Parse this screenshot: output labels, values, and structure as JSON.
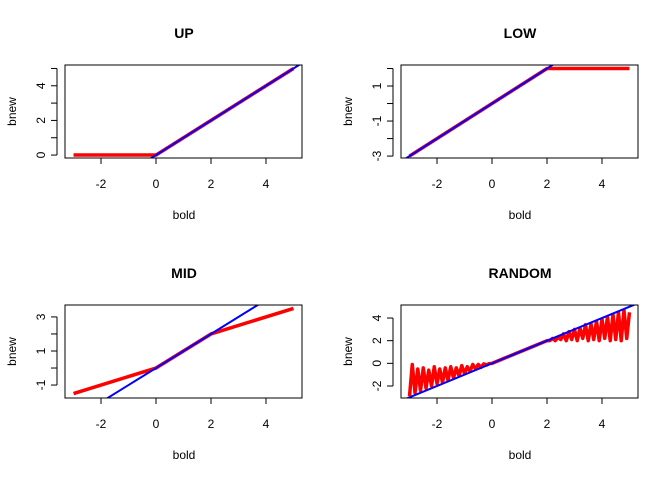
{
  "chart_data": [
    {
      "type": "line",
      "title": "UP",
      "xlabel": "bold",
      "ylabel": "bnew",
      "xlim": [
        -3.31,
        5.31
      ],
      "ylim": [
        -0.17,
        5.2
      ],
      "xticks": [
        -2,
        0,
        2,
        4
      ],
      "yticks": [
        0,
        1,
        2,
        3,
        4,
        5
      ],
      "ytick_labels": [
        "0",
        "",
        "2",
        "",
        "4",
        ""
      ],
      "series": [
        {
          "color": "#ff0000",
          "x": [
            -3,
            0,
            5
          ],
          "y": [
            0,
            0,
            5
          ]
        },
        {
          "color": "#0000ff",
          "abline": {
            "intercept": 0,
            "slope": 1
          }
        }
      ]
    },
    {
      "type": "line",
      "title": "LOW",
      "xlabel": "bold",
      "ylabel": "bnew",
      "xlim": [
        -3.31,
        5.31
      ],
      "ylim": [
        -3.11,
        2.2
      ],
      "xticks": [
        -2,
        0,
        2,
        4
      ],
      "yticks": [
        -3,
        -2,
        -1,
        0,
        1,
        2
      ],
      "ytick_labels": [
        "-3",
        "",
        "-1",
        "",
        "1",
        ""
      ],
      "series": [
        {
          "color": "#ff0000",
          "x": [
            -3,
            2,
            5
          ],
          "y": [
            -3,
            2,
            2
          ]
        },
        {
          "color": "#0000ff",
          "abline": {
            "intercept": 0,
            "slope": 1
          }
        }
      ]
    },
    {
      "type": "line",
      "title": "MID",
      "xlabel": "bold",
      "ylabel": "bnew",
      "xlim": [
        -3.31,
        5.31
      ],
      "ylim": [
        -1.76,
        3.7
      ],
      "xticks": [
        -2,
        0,
        2,
        4
      ],
      "yticks": [
        -1,
        0,
        1,
        2,
        3
      ],
      "ytick_labels": [
        "-1",
        "",
        "1",
        "",
        "3"
      ],
      "series": [
        {
          "color": "#ff0000",
          "x": [
            -3,
            0,
            2,
            5
          ],
          "y": [
            -1.5,
            0,
            2,
            3.5
          ]
        },
        {
          "color": "#0000ff",
          "abline": {
            "intercept": 0,
            "slope": 1
          }
        }
      ]
    },
    {
      "type": "line",
      "title": "RANDOM",
      "xlabel": "bold",
      "ylabel": "bnew",
      "xlim": [
        -3.31,
        5.31
      ],
      "ylim": [
        -3.06,
        5.15
      ],
      "xticks": [
        -2,
        0,
        2,
        4
      ],
      "yticks": [
        -2,
        0,
        2,
        4
      ],
      "ytick_labels": [
        "-2",
        "0",
        "2",
        "4"
      ],
      "series": [
        {
          "color": "#ff0000",
          "x": [
            -3,
            -2.9,
            -2.8,
            -2.7,
            -2.6,
            -2.5,
            -2.4,
            -2.3,
            -2.2,
            -2.1,
            -2,
            -1.9,
            -1.8,
            -1.7,
            -1.6,
            -1.5,
            -1.4,
            -1.3,
            -1.2,
            -1.1,
            -1,
            -0.9,
            -0.8,
            -0.7,
            -0.6,
            -0.5,
            -0.4,
            -0.3,
            -0.2,
            -0.1,
            0,
            0.5,
            1,
            1.5,
            2,
            2.1,
            2.2,
            2.3,
            2.4,
            2.5,
            2.6,
            2.7,
            2.8,
            2.9,
            3,
            3.1,
            3.2,
            3.3,
            3.4,
            3.5,
            3.6,
            3.7,
            3.8,
            3.9,
            4,
            4.1,
            4.2,
            4.3,
            4.4,
            4.5,
            4.6,
            4.7,
            4.8,
            4.9,
            5
          ],
          "y": [
            -2.9,
            -0.1,
            -2.6,
            -0.5,
            -2.4,
            -0.4,
            -2.2,
            -0.6,
            -2.0,
            -0.3,
            -1.8,
            -0.5,
            -1.7,
            -0.4,
            -1.5,
            -0.3,
            -1.3,
            -0.4,
            -1.1,
            -0.2,
            -0.9,
            -0.3,
            -0.7,
            -0.1,
            -0.5,
            -0.1,
            -0.35,
            -0.05,
            -0.15,
            -0.02,
            0,
            0.5,
            1,
            1.5,
            2,
            2.0,
            2.2,
            2.0,
            2.3,
            2.1,
            2.6,
            2.0,
            2.8,
            2.1,
            3.0,
            2.0,
            3.1,
            2.2,
            3.4,
            2.0,
            3.5,
            2.1,
            3.7,
            2.0,
            3.9,
            2.2,
            4.1,
            2.0,
            4.3,
            2.1,
            4.5,
            2.0,
            4.7,
            2.2,
            4.5
          ]
        },
        {
          "color": "#0000ff",
          "abline": {
            "intercept": 0,
            "slope": 1
          }
        }
      ]
    }
  ]
}
